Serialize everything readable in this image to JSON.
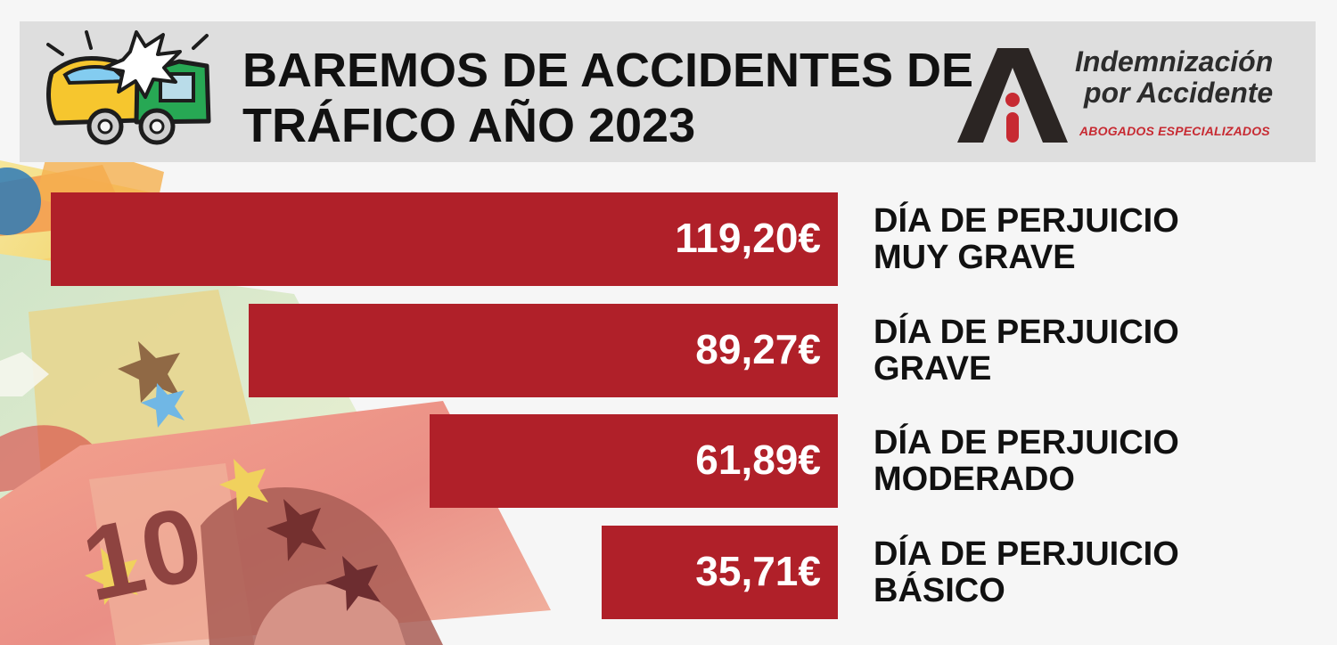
{
  "header": {
    "title_line1": "BAREMOS DE ACCIDENTES DE",
    "title_line2": "TRÁFICO AÑO 2023",
    "brand_line1": "Indemnización",
    "brand_line2": "por Accidente",
    "brand_tagline": "ABOGADOS ESPECIALIZADOS",
    "icons": {
      "left": "car-collision-icon",
      "right": "brand-logo-icon"
    }
  },
  "colors": {
    "background": "#f6f6f6",
    "header": "#dedede",
    "bar": "#b02029",
    "brand_red": "#c72a32",
    "text": "#111111"
  },
  "decoration": {
    "banknote_value": "10"
  },
  "chart_data": {
    "type": "bar",
    "orientation": "horizontal",
    "categories": [
      [
        "DÍA DE PERJUICIO",
        "MUY GRAVE"
      ],
      [
        "DÍA DE PERJUICIO",
        "GRAVE"
      ],
      [
        "DÍA DE PERJUICIO",
        "MODERADO"
      ],
      [
        "DÍA DE PERJUICIO",
        "BÁSICO"
      ]
    ],
    "values": [
      119.2,
      89.27,
      61.89,
      35.71
    ],
    "value_labels": [
      "119,20€",
      "89,27€",
      "61,89€",
      "35,71€"
    ],
    "title": "BAREMOS DE ACCIDENTES DE TRÁFICO AÑO 2023",
    "xlabel": "",
    "ylabel": "",
    "xlim": [
      0,
      119.2
    ],
    "grid": false,
    "legend": "none",
    "bar_alignment": "right"
  }
}
